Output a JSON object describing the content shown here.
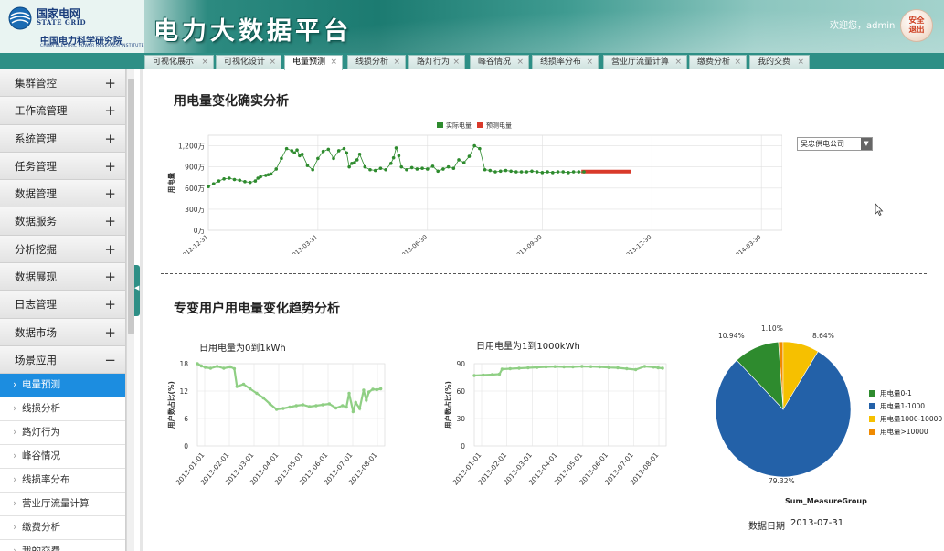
{
  "header": {
    "org_name_cn": "国家电网",
    "org_name_en": "STATE GRID",
    "institute_cn": "中国电力科学研究院",
    "institute_en": "CHINA ELECTRIC POWER RESEARCH INSTITUTE",
    "app_title": "电力大数据平台",
    "welcome": "欢迎您，admin",
    "logout_label_line1": "安全",
    "logout_label_line2": "退出",
    "accent_color": "#1c7b71"
  },
  "tabs": [
    {
      "label": "可视化展示",
      "active": false
    },
    {
      "label": "可视化设计",
      "active": false
    },
    {
      "label": "电量预测",
      "active": true
    },
    {
      "label": "线损分析",
      "active": false
    },
    {
      "label": "路灯行为",
      "active": false
    },
    {
      "label": "峰谷情况",
      "active": false
    },
    {
      "label": "线损率分布",
      "active": false
    },
    {
      "label": "营业厅流量计算",
      "active": false
    },
    {
      "label": "缴费分析",
      "active": false
    },
    {
      "label": "我的交费",
      "active": false
    }
  ],
  "sidebar": {
    "groups": [
      {
        "label": "集群管控",
        "icon": "+"
      },
      {
        "label": "工作流管理",
        "icon": "+"
      },
      {
        "label": "系统管理",
        "icon": "+"
      },
      {
        "label": "任务管理",
        "icon": "+"
      },
      {
        "label": "数据管理",
        "icon": "+"
      },
      {
        "label": "数据服务",
        "icon": "+"
      },
      {
        "label": "分析挖掘",
        "icon": "+"
      },
      {
        "label": "数据展现",
        "icon": "+"
      },
      {
        "label": "日志管理",
        "icon": "+"
      },
      {
        "label": "数据市场",
        "icon": "+"
      },
      {
        "label": "场景应用",
        "icon": "−"
      }
    ],
    "sub_items": [
      {
        "label": "电量预测",
        "active": true
      },
      {
        "label": "线损分析",
        "active": false
      },
      {
        "label": "路灯行为",
        "active": false
      },
      {
        "label": "峰谷情况",
        "active": false
      },
      {
        "label": "线损率分布",
        "active": false
      },
      {
        "label": "营业厅流量计算",
        "active": false
      },
      {
        "label": "缴费分析",
        "active": false
      },
      {
        "label": "我的交费",
        "active": false
      }
    ]
  },
  "main": {
    "section1_title": "用电量变化确实分析",
    "section2_title": "专变用户用电量变化趋势分析",
    "company_select": "吴忠供电公司",
    "chart1_subtitle": "日用电量为0到1kWh",
    "chart2_subtitle": "日用电量为1到1000kWh",
    "pie_caption": "Sum_MeasureGroup",
    "date_label": "数据日期",
    "date_value": "2013-07-31"
  },
  "chart_data": [
    {
      "type": "scatter",
      "ylabel": "用电量",
      "ylim": [
        0,
        1350
      ],
      "ytick_values": [
        0,
        300,
        600,
        900,
        1200
      ],
      "yticks": [
        "0万",
        "300万",
        "600万",
        "900万",
        "1,200万"
      ],
      "xticks": [
        "2012-12-31",
        "2013-03-31",
        "2013-06-30",
        "2013-09-30",
        "2013-12-30",
        "2014-03-30"
      ],
      "legend_position": "top",
      "grid": true,
      "series": [
        {
          "name": "实际电量",
          "color": "#2e8b2e",
          "x": [
            0,
            10,
            20,
            30,
            40,
            50,
            60,
            70,
            80,
            90,
            95,
            100,
            110,
            115,
            120,
            130,
            140,
            150,
            160,
            165,
            170,
            175,
            180,
            190,
            200,
            210,
            220,
            230,
            240,
            250,
            260,
            265,
            270,
            275,
            280,
            285,
            290,
            300,
            310,
            320,
            330,
            340,
            350,
            355,
            360,
            365,
            370,
            380,
            390,
            400,
            410,
            420,
            430,
            440,
            450,
            460,
            470,
            480,
            490,
            500,
            510,
            520,
            530,
            540,
            550,
            560,
            570,
            580,
            590,
            600,
            610,
            620,
            630,
            640,
            650,
            660,
            670,
            680,
            690,
            700,
            710,
            720
          ],
          "y": [
            620,
            660,
            700,
            730,
            740,
            720,
            710,
            690,
            680,
            700,
            740,
            760,
            780,
            790,
            800,
            870,
            1020,
            1160,
            1130,
            1100,
            1140,
            1060,
            1080,
            920,
            860,
            1020,
            1120,
            1150,
            1020,
            1130,
            1160,
            1100,
            900,
            950,
            960,
            1000,
            1080,
            900,
            860,
            850,
            880,
            860,
            950,
            1030,
            1170,
            1060,
            900,
            860,
            890,
            870,
            880,
            870,
            910,
            840,
            870,
            900,
            880,
            1000,
            960,
            1050,
            1200,
            1160,
            860,
            850,
            830,
            840,
            850,
            840,
            830,
            830,
            830,
            840,
            830,
            820,
            830,
            820,
            830,
            830,
            820,
            830,
            830,
            830
          ]
        }
      ]
    },
    {
      "type": "line",
      "ylabel": "用户数占比(%)",
      "ylim": [
        0,
        18
      ],
      "yticks": [
        0,
        6,
        12,
        18
      ],
      "xticks": [
        "2013-01-01",
        "2013-02-01",
        "2013-03-01",
        "2013-04-01",
        "2013-05-01",
        "2013-06-01",
        "2013-07-01",
        "2013-08-01"
      ],
      "series": [
        {
          "x": [
            0,
            3,
            6,
            10,
            15,
            20,
            25,
            28,
            30,
            35,
            40,
            45,
            50,
            55,
            60,
            65,
            70,
            75,
            80,
            85,
            90,
            95,
            100,
            105,
            110,
            113,
            115,
            118,
            120,
            123,
            126,
            128,
            130,
            133,
            136,
            139
          ],
          "y": [
            18,
            17.5,
            17.2,
            17,
            17.4,
            17,
            17.3,
            16.9,
            13,
            13.5,
            12.5,
            11.5,
            10.5,
            9.2,
            8,
            8.2,
            8.5,
            8.8,
            9,
            8.6,
            8.8,
            9,
            9.2,
            8.3,
            8.8,
            8.5,
            11.5,
            7.5,
            9.5,
            8.2,
            12.2,
            10,
            11.8,
            12.4,
            12.3,
            12.5
          ]
        }
      ]
    },
    {
      "type": "line",
      "ylabel": "用户数占比(%)",
      "ylim": [
        0,
        90
      ],
      "yticks": [
        0,
        30,
        60,
        90
      ],
      "xticks": [
        "2013-01-01",
        "2013-02-01",
        "2013-03-01",
        "2013-04-01",
        "2013-05-01",
        "2013-06-01",
        "2013-07-01",
        "2013-08-01"
      ],
      "series": [
        {
          "x": [
            0,
            10,
            20,
            28,
            31,
            40,
            50,
            60,
            70,
            80,
            90,
            100,
            110,
            120,
            130,
            140,
            150,
            160,
            170,
            180,
            190,
            200,
            205,
            210
          ],
          "y": [
            77,
            77.5,
            78,
            78.5,
            84,
            84.5,
            85,
            85.5,
            86,
            86.5,
            86.8,
            86.5,
            86.5,
            87,
            86.8,
            86.5,
            85.8,
            85.5,
            84.5,
            83.5,
            87,
            86.2,
            85.5,
            85
          ]
        }
      ]
    },
    {
      "type": "pie",
      "slices": [
        {
          "label": "用电量0-1",
          "value": 10.94,
          "color": "#2e8b2e"
        },
        {
          "label": "用电量1-1000",
          "value": 79.32,
          "color": "#2361a8"
        },
        {
          "label": "用电量1000-10000",
          "value": 8.64,
          "color": "#f6c000"
        },
        {
          "label": "用电量>10000",
          "value": 1.1,
          "color": "#f08a00"
        }
      ],
      "labels_shown": [
        "10.94%",
        "79.32%",
        "8.64%",
        "1.10%"
      ]
    }
  ]
}
